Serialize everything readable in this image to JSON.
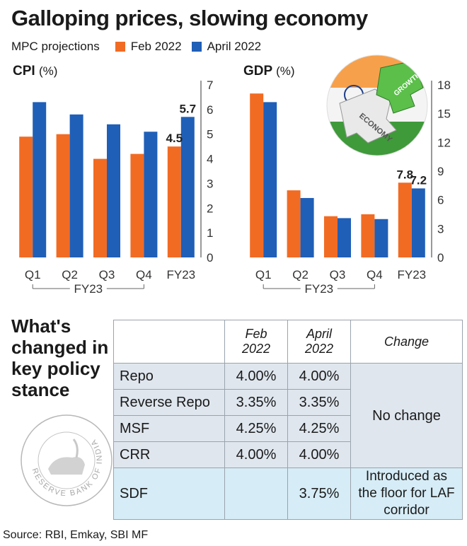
{
  "title": "Galloping prices, slowing economy",
  "legend": {
    "label": "MPC projections",
    "items": [
      {
        "name": "Feb 2022",
        "color": "#f26b23"
      },
      {
        "name": "April 2022",
        "color": "#1f5fb7"
      }
    ]
  },
  "chart_data": [
    {
      "type": "bar",
      "title": "CPI",
      "unit": "(%)",
      "categories": [
        "Q1",
        "Q2",
        "Q3",
        "Q4",
        "FY23"
      ],
      "group_label": "FY23",
      "series": [
        {
          "name": "Feb 2022",
          "values": [
            4.9,
            5.0,
            4.0,
            4.2,
            4.5
          ]
        },
        {
          "name": "April 2022",
          "values": [
            6.3,
            5.8,
            5.4,
            5.1,
            5.7
          ]
        }
      ],
      "data_labels": [
        "4.5",
        "5.7"
      ],
      "ylim": [
        0,
        7
      ],
      "yticks": [
        "0",
        "1",
        "2",
        "3",
        "4",
        "5",
        "6",
        "7"
      ],
      "grid": false
    },
    {
      "type": "bar",
      "title": "GDP",
      "unit": "(%)",
      "categories": [
        "Q1",
        "Q2",
        "Q3",
        "Q4",
        "FY23"
      ],
      "group_label": "FY23",
      "series": [
        {
          "name": "Feb 2022",
          "values": [
            17.1,
            7.0,
            4.3,
            4.5,
            7.8
          ]
        },
        {
          "name": "April 2022",
          "values": [
            16.2,
            6.2,
            4.1,
            4.0,
            7.2
          ]
        }
      ],
      "data_labels": [
        "7.8",
        "7.2"
      ],
      "ylim": [
        0,
        18
      ],
      "yticks": [
        "0",
        "3",
        "6",
        "9",
        "12",
        "15",
        "18"
      ],
      "grid": false
    }
  ],
  "policy": {
    "title": "What's changed in key policy stance",
    "headers": [
      "Feb 2022",
      "April 2022",
      "Change"
    ],
    "rows": [
      {
        "label": "Repo",
        "feb": "4.00%",
        "apr": "4.00%"
      },
      {
        "label": "Reverse Repo",
        "feb": "3.35%",
        "apr": "3.35%"
      },
      {
        "label": "MSF",
        "feb": "4.25%",
        "apr": "4.25%"
      },
      {
        "label": "CRR",
        "feb": "4.00%",
        "apr": "4.00%"
      }
    ],
    "no_change": "No change",
    "sdf": {
      "label": "SDF",
      "feb": "",
      "apr": "3.75%",
      "change": "Introduced as the floor for LAF corridor"
    }
  },
  "emblem_text": "RESERVE BANK OF INDIA",
  "puzzle_words": [
    "ECONOMY",
    "GROWTH"
  ],
  "source": "Source: RBI, Emkay, SBI MF"
}
